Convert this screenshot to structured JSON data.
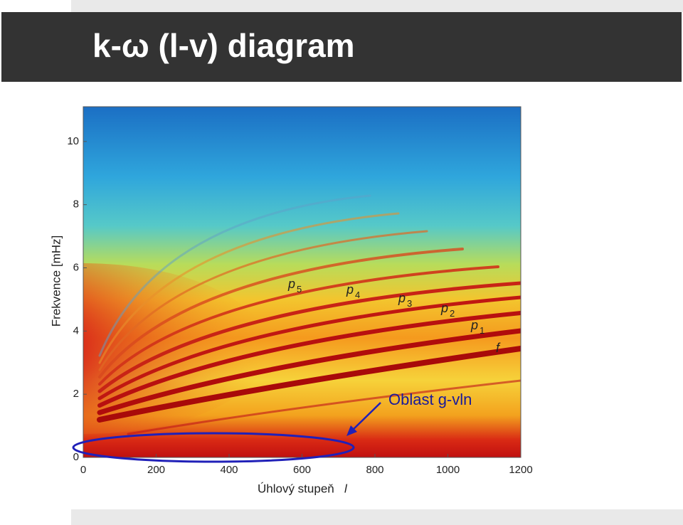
{
  "chart_data": {
    "type": "spectrogram",
    "title": "k-ω (l-v) diagram",
    "x_label": "Úhlový stupeň",
    "x_label_symbol": "l",
    "y_label": "Frekvence [mHz]",
    "xlim": [
      0,
      1200
    ],
    "xticks": [
      0,
      200,
      400,
      600,
      800,
      1000,
      1200
    ],
    "ylim": [
      0,
      11.1
    ],
    "yticks": [
      0,
      2,
      4,
      6,
      8,
      10
    ],
    "ridge_labels": [
      {
        "text": "p",
        "sub": "5"
      },
      {
        "text": "p",
        "sub": "4"
      },
      {
        "text": "p",
        "sub": "3"
      },
      {
        "text": "p",
        "sub": "2"
      },
      {
        "text": "p",
        "sub": "1"
      },
      {
        "text": "f"
      }
    ],
    "annotation": "Oblast g-vln"
  }
}
